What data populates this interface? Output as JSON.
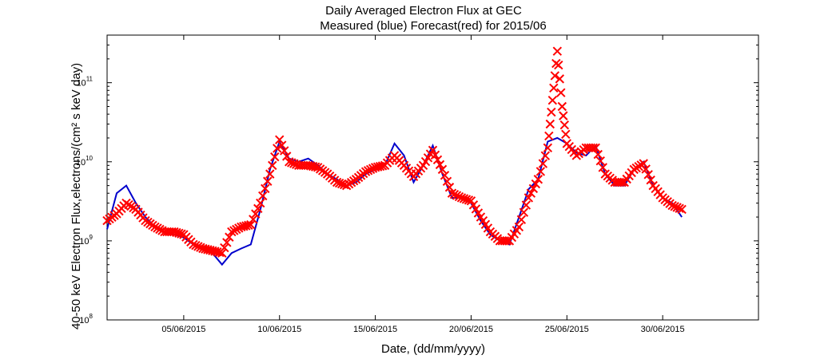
{
  "chart_data": {
    "type": "line",
    "title": "Daily Averaged Electron Flux at GEC",
    "subtitle": "Measured (blue) Forecast(red) for 2015/06",
    "xlabel": "Date, (dd/mm/yyyy)",
    "ylabel": "40-50 keV Electron Flux,electrons/(cm² s keV day)",
    "y_scale": "log",
    "ylim": [
      100000000.0,
      400000000000.0
    ],
    "y_ticks": [
      {
        "value": 100000000.0,
        "base": "10",
        "exp": "8"
      },
      {
        "value": 1000000000.0,
        "base": "10",
        "exp": "9"
      },
      {
        "value": 10000000000.0,
        "base": "10",
        "exp": "10"
      },
      {
        "value": 100000000000.0,
        "base": "10",
        "exp": "11"
      }
    ],
    "xlim": [
      "2015-06-01",
      "2015-07-05"
    ],
    "x_ticks": [
      "05/06/2015",
      "10/06/2015",
      "15/06/2015",
      "20/06/2015",
      "25/06/2015",
      "30/06/2015"
    ],
    "x_tick_values": [
      "2015-06-05",
      "2015-06-10",
      "2015-06-15",
      "2015-06-20",
      "2015-06-25",
      "2015-06-30"
    ],
    "grid": false,
    "series": [
      {
        "name": "Measured",
        "style": "line",
        "color": "#0000cc",
        "x": [
          "2015-06-01 00:00",
          "2015-06-01 12:00",
          "2015-06-02 00:00",
          "2015-06-02 12:00",
          "2015-06-03 00:00",
          "2015-06-03 12:00",
          "2015-06-04 00:00",
          "2015-06-04 12:00",
          "2015-06-05 00:00",
          "2015-06-05 12:00",
          "2015-06-06 00:00",
          "2015-06-06 12:00",
          "2015-06-07 00:00",
          "2015-06-07 12:00",
          "2015-06-08 00:00",
          "2015-06-08 12:00",
          "2015-06-09 00:00",
          "2015-06-09 12:00",
          "2015-06-10 00:00",
          "2015-06-10 12:00",
          "2015-06-11 00:00",
          "2015-06-11 12:00",
          "2015-06-12 00:00",
          "2015-06-12 12:00",
          "2015-06-13 00:00",
          "2015-06-13 12:00",
          "2015-06-14 00:00",
          "2015-06-14 12:00",
          "2015-06-15 00:00",
          "2015-06-15 12:00",
          "2015-06-16 00:00",
          "2015-06-16 12:00",
          "2015-06-17 00:00",
          "2015-06-17 12:00",
          "2015-06-18 00:00",
          "2015-06-18 12:00",
          "2015-06-19 00:00",
          "2015-06-19 12:00",
          "2015-06-20 00:00",
          "2015-06-20 12:00",
          "2015-06-21 00:00",
          "2015-06-21 12:00",
          "2015-06-22 00:00",
          "2015-06-22 12:00",
          "2015-06-23 00:00",
          "2015-06-23 12:00",
          "2015-06-24 00:00",
          "2015-06-24 12:00",
          "2015-06-25 00:00",
          "2015-06-25 12:00",
          "2015-06-26 00:00",
          "2015-06-26 12:00",
          "2015-06-27 00:00",
          "2015-06-27 12:00",
          "2015-06-28 00:00",
          "2015-06-28 12:00",
          "2015-06-29 00:00",
          "2015-06-29 12:00",
          "2015-06-30 00:00",
          "2015-06-30 12:00",
          "2015-07-01 00:00"
        ],
        "y": [
          1400000000.0,
          4000000000.0,
          5000000000.0,
          3000000000.0,
          2000000000.0,
          1500000000.0,
          1300000000.0,
          1200000000.0,
          1100000000.0,
          900000000.0,
          800000000.0,
          700000000.0,
          500000000.0,
          700000000.0,
          800000000.0,
          900000000.0,
          2500000000.0,
          8000000000.0,
          18000000000.0,
          11000000000.0,
          10000000000.0,
          11000000000.0,
          9000000000.0,
          7000000000.0,
          6000000000.0,
          5000000000.0,
          5500000000.0,
          7000000000.0,
          8000000000.0,
          9000000000.0,
          17000000000.0,
          12000000000.0,
          5500000000.0,
          9000000000.0,
          16000000000.0,
          7000000000.0,
          3500000000.0,
          3500000000.0,
          3000000000.0,
          1800000000.0,
          1200000000.0,
          1000000000.0,
          900000000.0,
          2000000000.0,
          4500000000.0,
          6000000000.0,
          18000000000.0,
          20000000000.0,
          17000000000.0,
          13000000000.0,
          12000000000.0,
          16000000000.0,
          7000000000.0,
          5000000000.0,
          5000000000.0,
          8000000000.0,
          10000000000.0,
          5000000000.0,
          3500000000.0,
          3000000000.0,
          2000000000.0
        ]
      },
      {
        "name": "Forecast",
        "style": "markers-x",
        "color": "#ff0000",
        "x": [
          "2015-06-01 00:00",
          "2015-06-01 12:00",
          "2015-06-02 00:00",
          "2015-06-02 12:00",
          "2015-06-03 00:00",
          "2015-06-03 12:00",
          "2015-06-04 00:00",
          "2015-06-04 12:00",
          "2015-06-05 00:00",
          "2015-06-05 12:00",
          "2015-06-06 00:00",
          "2015-06-06 12:00",
          "2015-06-07 00:00",
          "2015-06-07 12:00",
          "2015-06-08 00:00",
          "2015-06-08 12:00",
          "2015-06-09 00:00",
          "2015-06-09 12:00",
          "2015-06-10 00:00",
          "2015-06-10 12:00",
          "2015-06-11 00:00",
          "2015-06-11 12:00",
          "2015-06-12 00:00",
          "2015-06-12 12:00",
          "2015-06-13 00:00",
          "2015-06-13 12:00",
          "2015-06-14 00:00",
          "2015-06-14 12:00",
          "2015-06-15 00:00",
          "2015-06-15 12:00",
          "2015-06-16 00:00",
          "2015-06-16 12:00",
          "2015-06-17 00:00",
          "2015-06-17 12:00",
          "2015-06-18 00:00",
          "2015-06-18 12:00",
          "2015-06-19 00:00",
          "2015-06-19 12:00",
          "2015-06-20 00:00",
          "2015-06-20 12:00",
          "2015-06-21 00:00",
          "2015-06-21 12:00",
          "2015-06-22 00:00",
          "2015-06-22 12:00",
          "2015-06-23 00:00",
          "2015-06-23 12:00",
          "2015-06-24 00:00",
          "2015-06-24 06:00",
          "2015-06-24 12:00",
          "2015-06-24 18:00",
          "2015-06-25 00:00",
          "2015-06-25 12:00",
          "2015-06-26 00:00",
          "2015-06-26 12:00",
          "2015-06-27 00:00",
          "2015-06-27 12:00",
          "2015-06-28 00:00",
          "2015-06-28 12:00",
          "2015-06-29 00:00",
          "2015-06-29 12:00",
          "2015-06-30 00:00",
          "2015-06-30 12:00",
          "2015-07-01 00:00"
        ],
        "y": [
          1800000000.0,
          2200000000.0,
          3000000000.0,
          2500000000.0,
          1800000000.0,
          1500000000.0,
          1300000000.0,
          1300000000.0,
          1200000000.0,
          900000000.0,
          800000000.0,
          750000000.0,
          700000000.0,
          1300000000.0,
          1500000000.0,
          1600000000.0,
          3000000000.0,
          7000000000.0,
          19000000000.0,
          10000000000.0,
          9000000000.0,
          9000000000.0,
          8500000000.0,
          7000000000.0,
          5500000000.0,
          5000000000.0,
          6000000000.0,
          7500000000.0,
          8500000000.0,
          9000000000.0,
          12000000000.0,
          9000000000.0,
          6500000000.0,
          9000000000.0,
          14000000000.0,
          8000000000.0,
          4000000000.0,
          3500000000.0,
          3200000000.0,
          2000000000.0,
          1300000000.0,
          1000000000.0,
          1000000000.0,
          1500000000.0,
          3500000000.0,
          6000000000.0,
          15000000000.0,
          60000000000.0,
          250000000000.0,
          50000000000.0,
          17000000000.0,
          12000000000.0,
          15000000000.0,
          15000000000.0,
          7000000000.0,
          5500000000.0,
          5500000000.0,
          8000000000.0,
          9500000000.0,
          5000000000.0,
          3500000000.0,
          2800000000.0,
          2500000000.0
        ]
      }
    ]
  }
}
